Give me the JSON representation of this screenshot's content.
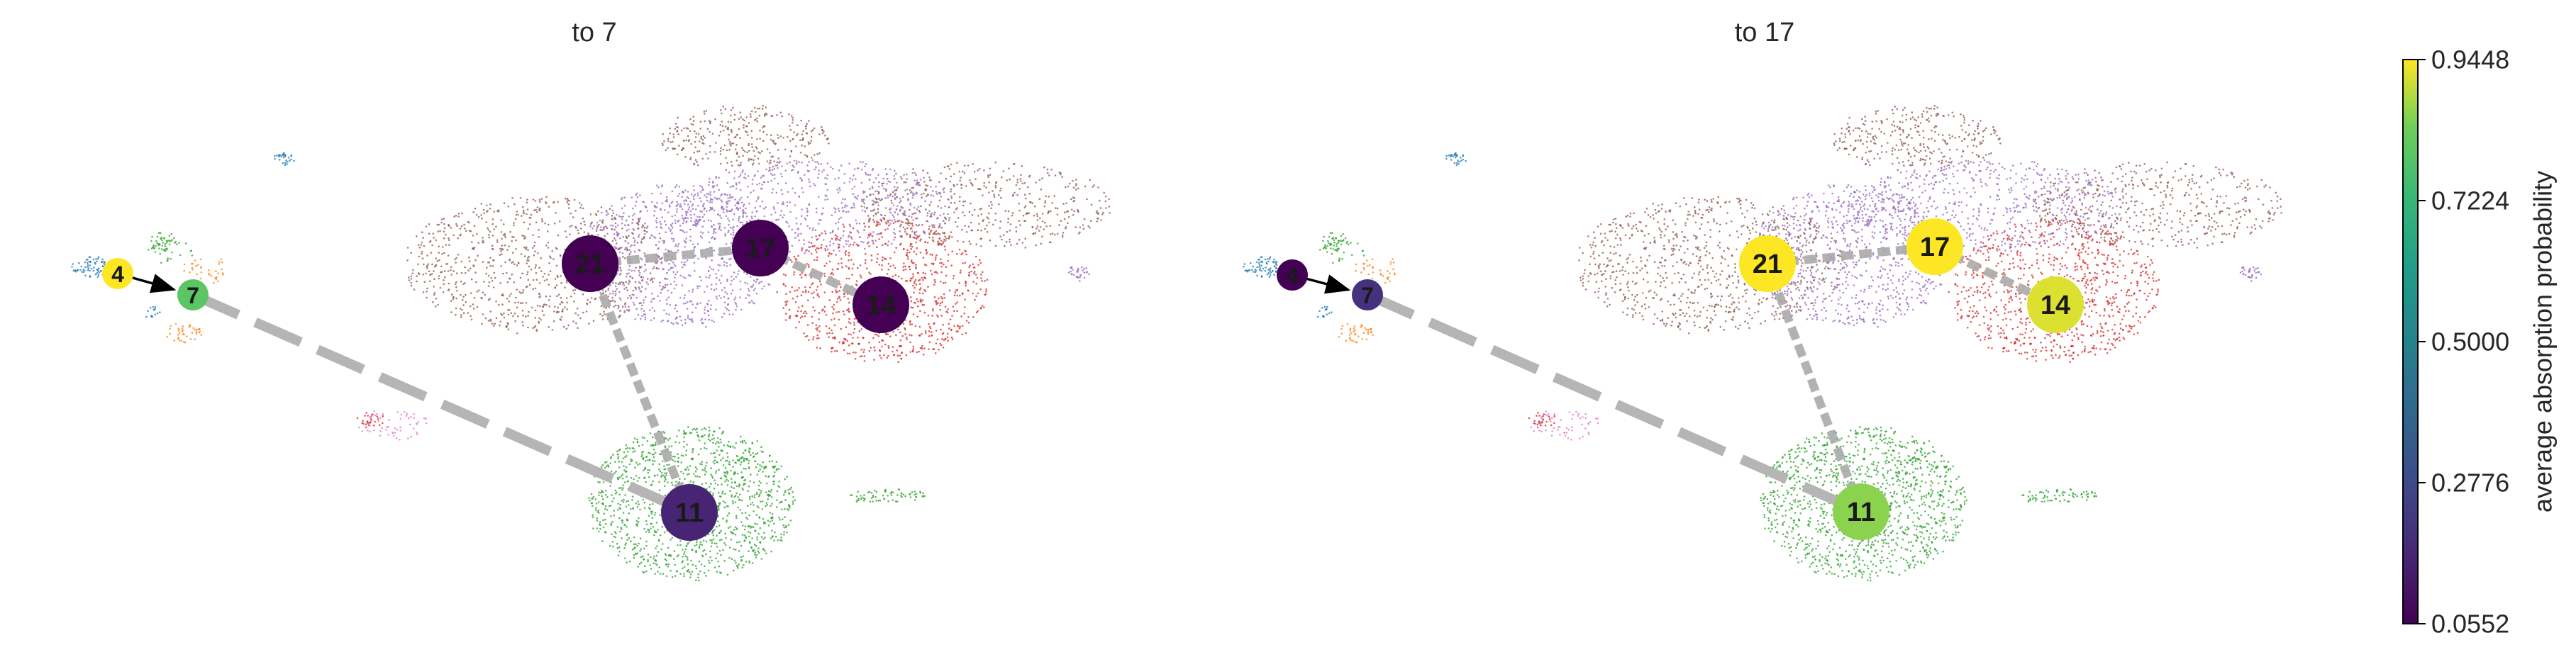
{
  "chart_data": [
    {
      "type": "scatter",
      "title": "to 7",
      "nodes": [
        {
          "label": "4",
          "value": 0.9448
        },
        {
          "label": "7",
          "value": 0.8
        },
        {
          "label": "21",
          "value": 0.0552
        },
        {
          "label": "17",
          "value": 0.0552
        },
        {
          "label": "14",
          "value": 0.0552
        },
        {
          "label": "11",
          "value": 0.16
        }
      ],
      "edges": [
        [
          "4",
          "7"
        ],
        [
          "7",
          "11"
        ],
        [
          "11",
          "21"
        ],
        [
          "21",
          "17"
        ],
        [
          "17",
          "14"
        ]
      ]
    },
    {
      "type": "scatter",
      "title": "to 17",
      "nodes": [
        {
          "label": "4",
          "value": 0.0552
        },
        {
          "label": "7",
          "value": 0.2
        },
        {
          "label": "21",
          "value": 0.9448
        },
        {
          "label": "17",
          "value": 0.9448
        },
        {
          "label": "14",
          "value": 0.92
        },
        {
          "label": "11",
          "value": 0.86
        }
      ],
      "edges": [
        [
          "4",
          "7"
        ],
        [
          "7",
          "11"
        ],
        [
          "11",
          "21"
        ],
        [
          "21",
          "17"
        ],
        [
          "17",
          "14"
        ]
      ]
    }
  ],
  "colorbar": {
    "label": "average absorption probability",
    "min": 0.0552,
    "max": 0.9448,
    "ticks": [
      "0.0552",
      "0.2776",
      "0.5000",
      "0.7224",
      "0.9448"
    ],
    "colormap": "viridis"
  },
  "cluster_colors": {
    "blue": "#1f77b4",
    "orange": "#ff7f0e",
    "green": "#2ca02c",
    "red": "#d62728",
    "purple": "#9467bd",
    "brown": "#8c564b",
    "pink": "#e377c2"
  }
}
